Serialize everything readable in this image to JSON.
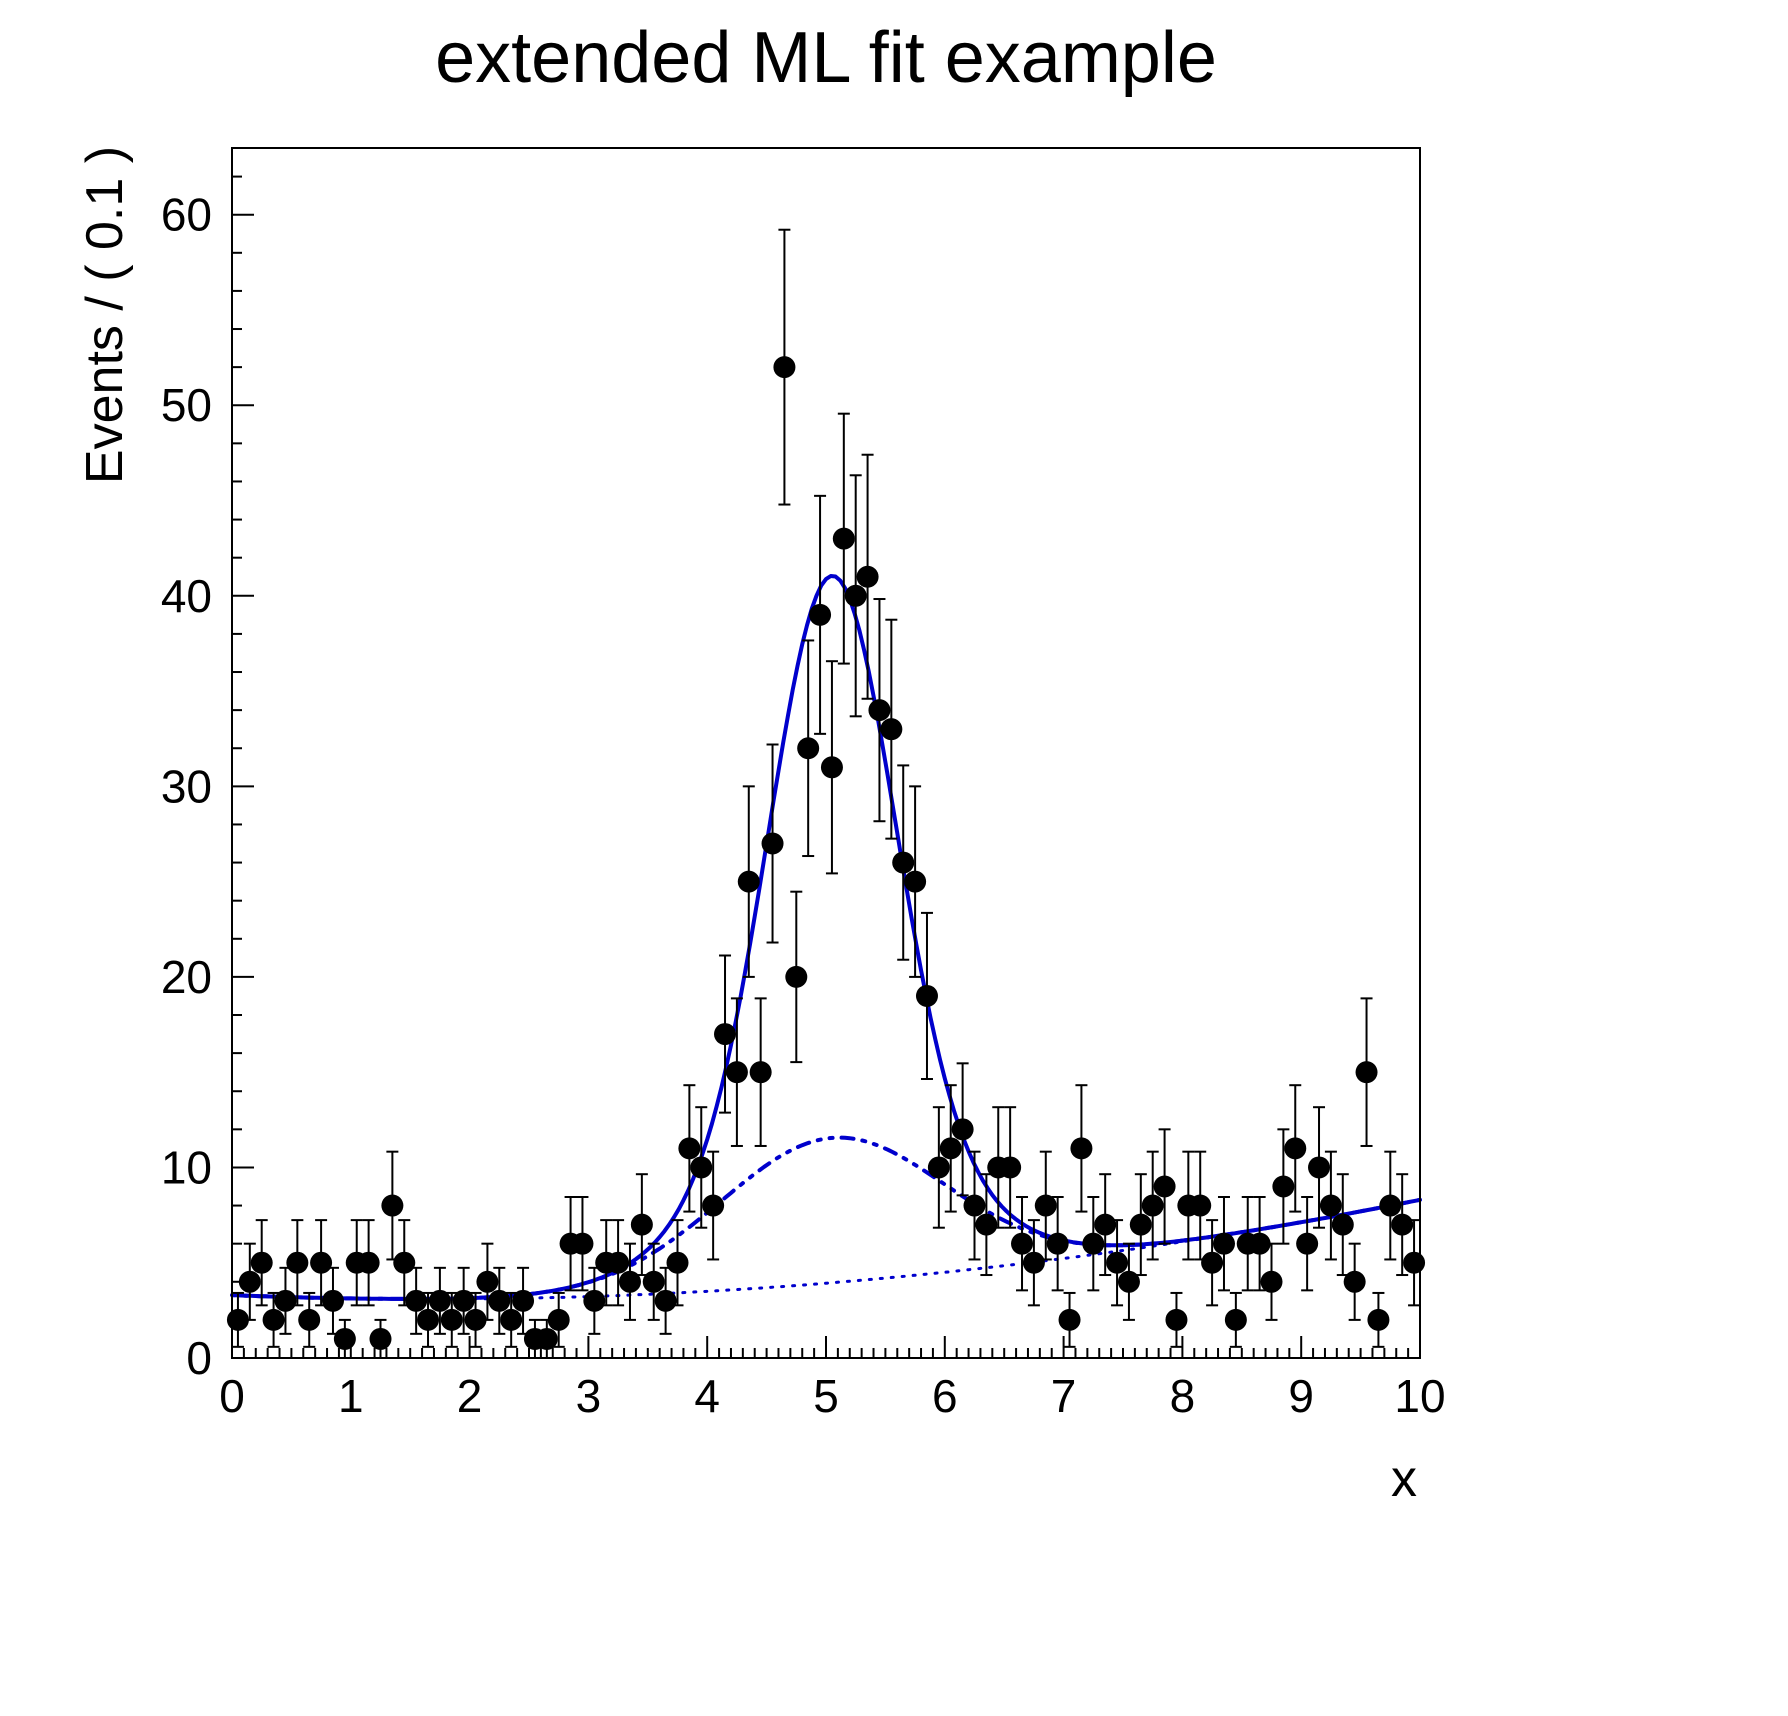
{
  "chart_data": {
    "type": "scatter",
    "title": "extended ML fit example",
    "xlabel": "x",
    "ylabel": "Events / ( 0.1 )",
    "xlim": [
      0,
      10
    ],
    "ylim": [
      0,
      63.5
    ],
    "x_ticks": [
      0,
      1,
      2,
      3,
      4,
      5,
      6,
      7,
      8,
      9,
      10
    ],
    "y_ticks": [
      0,
      10,
      20,
      30,
      40,
      50,
      60
    ],
    "x_minor_step": 0.1,
    "y_minor_step": 2,
    "marker_color": "#000000",
    "curve_color": "#0000cc",
    "error_model": "poisson sqrt(n)",
    "points": [
      [
        0.05,
        2
      ],
      [
        0.15,
        4
      ],
      [
        0.25,
        5
      ],
      [
        0.35,
        2
      ],
      [
        0.45,
        3
      ],
      [
        0.55,
        5
      ],
      [
        0.65,
        2
      ],
      [
        0.75,
        5
      ],
      [
        0.85,
        3
      ],
      [
        0.95,
        1
      ],
      [
        1.05,
        5
      ],
      [
        1.15,
        5
      ],
      [
        1.25,
        1
      ],
      [
        1.35,
        8
      ],
      [
        1.45,
        5
      ],
      [
        1.55,
        3
      ],
      [
        1.65,
        2
      ],
      [
        1.75,
        3
      ],
      [
        1.85,
        2
      ],
      [
        1.95,
        3
      ],
      [
        2.05,
        2
      ],
      [
        2.15,
        4
      ],
      [
        2.25,
        3
      ],
      [
        2.35,
        2
      ],
      [
        2.45,
        3
      ],
      [
        2.55,
        1
      ],
      [
        2.65,
        1
      ],
      [
        2.75,
        2
      ],
      [
        2.85,
        6
      ],
      [
        2.95,
        6
      ],
      [
        3.05,
        3
      ],
      [
        3.15,
        5
      ],
      [
        3.25,
        5
      ],
      [
        3.35,
        4
      ],
      [
        3.45,
        7
      ],
      [
        3.55,
        4
      ],
      [
        3.65,
        3
      ],
      [
        3.75,
        5
      ],
      [
        3.85,
        11
      ],
      [
        3.95,
        10
      ],
      [
        4.05,
        8
      ],
      [
        4.15,
        17
      ],
      [
        4.25,
        15
      ],
      [
        4.35,
        25
      ],
      [
        4.45,
        15
      ],
      [
        4.55,
        27
      ],
      [
        4.65,
        52
      ],
      [
        4.75,
        20
      ],
      [
        4.85,
        32
      ],
      [
        4.95,
        39
      ],
      [
        5.05,
        31
      ],
      [
        5.15,
        43
      ],
      [
        5.25,
        40
      ],
      [
        5.35,
        41
      ],
      [
        5.45,
        34
      ],
      [
        5.55,
        33
      ],
      [
        5.65,
        26
      ],
      [
        5.75,
        25
      ],
      [
        5.85,
        19
      ],
      [
        5.95,
        10
      ],
      [
        6.05,
        11
      ],
      [
        6.15,
        12
      ],
      [
        6.25,
        8
      ],
      [
        6.35,
        7
      ],
      [
        6.45,
        10
      ],
      [
        6.55,
        10
      ],
      [
        6.65,
        6
      ],
      [
        6.75,
        5
      ],
      [
        6.85,
        8
      ],
      [
        6.95,
        6
      ],
      [
        7.05,
        2
      ],
      [
        7.15,
        11
      ],
      [
        7.25,
        6
      ],
      [
        7.35,
        7
      ],
      [
        7.45,
        5
      ],
      [
        7.55,
        4
      ],
      [
        7.65,
        7
      ],
      [
        7.75,
        8
      ],
      [
        7.85,
        9
      ],
      [
        7.95,
        2
      ],
      [
        8.05,
        8
      ],
      [
        8.15,
        8
      ],
      [
        8.25,
        5
      ],
      [
        8.35,
        6
      ],
      [
        8.45,
        2
      ],
      [
        8.55,
        6
      ],
      [
        8.65,
        6
      ],
      [
        8.75,
        4
      ],
      [
        8.85,
        9
      ],
      [
        8.95,
        11
      ],
      [
        9.05,
        6
      ],
      [
        9.15,
        10
      ],
      [
        9.25,
        8
      ],
      [
        9.35,
        7
      ],
      [
        9.45,
        4
      ],
      [
        9.55,
        15
      ],
      [
        9.65,
        2
      ],
      [
        9.75,
        8
      ],
      [
        9.85,
        7
      ],
      [
        9.95,
        5
      ]
    ],
    "model": {
      "background_poly": [
        3.3,
        -0.25,
        0.075
      ],
      "wide_gauss": {
        "amp": 7.6,
        "mean": 5.05,
        "sigma": 0.95
      },
      "narrow_gauss": {
        "amp": 29.5,
        "mean": 5.05,
        "sigma": 0.52
      }
    },
    "curves": [
      {
        "name": "background-component",
        "style": "dotted"
      },
      {
        "name": "signal-plus-background-component",
        "style": "dash-dot"
      },
      {
        "name": "total-fit",
        "style": "solid"
      }
    ],
    "peak_total_value": 41,
    "peak_component_value": 11.7
  }
}
